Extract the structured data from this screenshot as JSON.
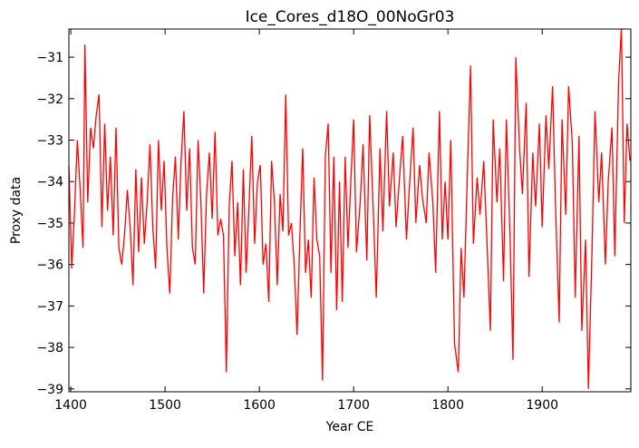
{
  "chart_data": {
    "type": "line",
    "title": "Ice_Cores_d18O_00NoGr03",
    "xlabel": "Year CE",
    "ylabel": "Proxy data",
    "xlim": [
      1398,
      1994
    ],
    "ylim": [
      -39.07,
      -30.32
    ],
    "xticks": [
      1400,
      1500,
      1600,
      1700,
      1800,
      1900
    ],
    "yticks": [
      {
        "value": -39,
        "label": "−39"
      },
      {
        "value": -38,
        "label": "−38"
      },
      {
        "value": -37,
        "label": "−37"
      },
      {
        "value": -36,
        "label": "−36"
      },
      {
        "value": -35,
        "label": "−35"
      },
      {
        "value": -34,
        "label": "−34"
      },
      {
        "value": -33,
        "label": "−33"
      },
      {
        "value": -32,
        "label": "−32"
      },
      {
        "value": -31,
        "label": "−31"
      }
    ],
    "grid": false,
    "x": [
      1398,
      1401,
      1404,
      1407,
      1410,
      1413,
      1415,
      1418,
      1421,
      1424,
      1427,
      1430,
      1433,
      1436,
      1439,
      1442,
      1445,
      1448,
      1451,
      1454,
      1457,
      1460,
      1463,
      1466,
      1469,
      1472,
      1475,
      1478,
      1481,
      1484,
      1487,
      1490,
      1493,
      1496,
      1499,
      1502,
      1505,
      1508,
      1511,
      1514,
      1517,
      1520,
      1523,
      1526,
      1529,
      1532,
      1535,
      1538,
      1541,
      1544,
      1547,
      1550,
      1553,
      1556,
      1559,
      1562,
      1565,
      1568,
      1571,
      1574,
      1577,
      1580,
      1583,
      1586,
      1589,
      1592,
      1595,
      1598,
      1601,
      1604,
      1607,
      1610,
      1613,
      1616,
      1619,
      1622,
      1625,
      1628,
      1631,
      1634,
      1637,
      1640,
      1643,
      1646,
      1649,
      1652,
      1655,
      1658,
      1661,
      1664,
      1667,
      1670,
      1673,
      1676,
      1679,
      1682,
      1685,
      1688,
      1691,
      1694,
      1697,
      1700,
      1703,
      1707,
      1710,
      1714,
      1717,
      1721,
      1724,
      1728,
      1731,
      1735,
      1738,
      1742,
      1745,
      1749,
      1752,
      1756,
      1759,
      1763,
      1766,
      1770,
      1773,
      1777,
      1780,
      1784,
      1787,
      1791,
      1794,
      1797,
      1800,
      1803,
      1807,
      1811,
      1814,
      1817,
      1821,
      1824,
      1827,
      1831,
      1834,
      1838,
      1841,
      1845,
      1848,
      1852,
      1855,
      1859,
      1862,
      1866,
      1869,
      1872,
      1876,
      1879,
      1883,
      1886,
      1890,
      1893,
      1897,
      1900,
      1904,
      1907,
      1911,
      1914,
      1918,
      1921,
      1925,
      1928,
      1932,
      1935,
      1939,
      1942,
      1946,
      1949,
      1953,
      1956,
      1960,
      1963,
      1967,
      1970,
      1974,
      1977,
      1981,
      1984,
      1987,
      1990,
      1993
    ],
    "series": [
      {
        "color": "#ff0000",
        "values": [
          -33.6,
          -36.1,
          -34.7,
          -33.0,
          -34.2,
          -35.6,
          -30.7,
          -34.5,
          -32.7,
          -33.2,
          -32.4,
          -31.9,
          -35.1,
          -32.6,
          -34.7,
          -33.4,
          -35.3,
          -32.7,
          -35.6,
          -36.0,
          -35.3,
          -34.2,
          -35.1,
          -36.5,
          -33.7,
          -35.7,
          -33.9,
          -35.5,
          -34.5,
          -33.1,
          -35.1,
          -36.1,
          -33.0,
          -34.7,
          -33.5,
          -35.6,
          -36.7,
          -34.4,
          -33.4,
          -35.4,
          -33.5,
          -32.3,
          -34.7,
          -33.2,
          -35.6,
          -36.0,
          -33.0,
          -34.5,
          -36.7,
          -34.3,
          -33.3,
          -34.9,
          -32.8,
          -35.3,
          -34.9,
          -35.3,
          -38.6,
          -34.6,
          -33.5,
          -35.8,
          -34.5,
          -36.5,
          -33.7,
          -36.2,
          -34.6,
          -32.9,
          -35.5,
          -34.0,
          -33.6,
          -36.0,
          -35.5,
          -36.9,
          -33.5,
          -34.5,
          -36.5,
          -34.3,
          -35.2,
          -31.9,
          -35.3,
          -35.0,
          -36.0,
          -37.7,
          -35.3,
          -33.2,
          -36.2,
          -35.4,
          -36.8,
          -33.9,
          -35.4,
          -35.8,
          -38.8,
          -33.4,
          -32.6,
          -36.2,
          -33.4,
          -37.1,
          -34.0,
          -36.9,
          -33.4,
          -35.6,
          -34.0,
          -32.5,
          -35.7,
          -34.5,
          -33.1,
          -35.9,
          -32.4,
          -34.8,
          -36.8,
          -33.2,
          -35.2,
          -32.3,
          -34.6,
          -33.3,
          -35.1,
          -33.8,
          -32.9,
          -35.4,
          -34.2,
          -32.7,
          -35.0,
          -33.6,
          -34.4,
          -35.0,
          -33.3,
          -34.5,
          -36.2,
          -32.3,
          -35.4,
          -34.0,
          -35.4,
          -33.0,
          -37.9,
          -38.6,
          -35.6,
          -36.8,
          -33.5,
          -31.2,
          -35.5,
          -33.9,
          -34.8,
          -33.5,
          -35.2,
          -37.6,
          -32.5,
          -34.5,
          -33.2,
          -36.4,
          -32.5,
          -35.4,
          -38.3,
          -31.0,
          -33.2,
          -34.3,
          -32.1,
          -36.3,
          -33.3,
          -34.6,
          -32.6,
          -35.1,
          -32.4,
          -33.7,
          -31.7,
          -34.5,
          -37.4,
          -32.5,
          -34.8,
          -31.7,
          -33.1,
          -36.8,
          -32.9,
          -37.6,
          -35.4,
          -39.0,
          -35.5,
          -32.3,
          -34.5,
          -33.3,
          -36.0,
          -34.0,
          -32.7,
          -35.8,
          -31.6,
          -30.3,
          -35.0,
          -32.6,
          -33.5
        ]
      }
    ]
  }
}
